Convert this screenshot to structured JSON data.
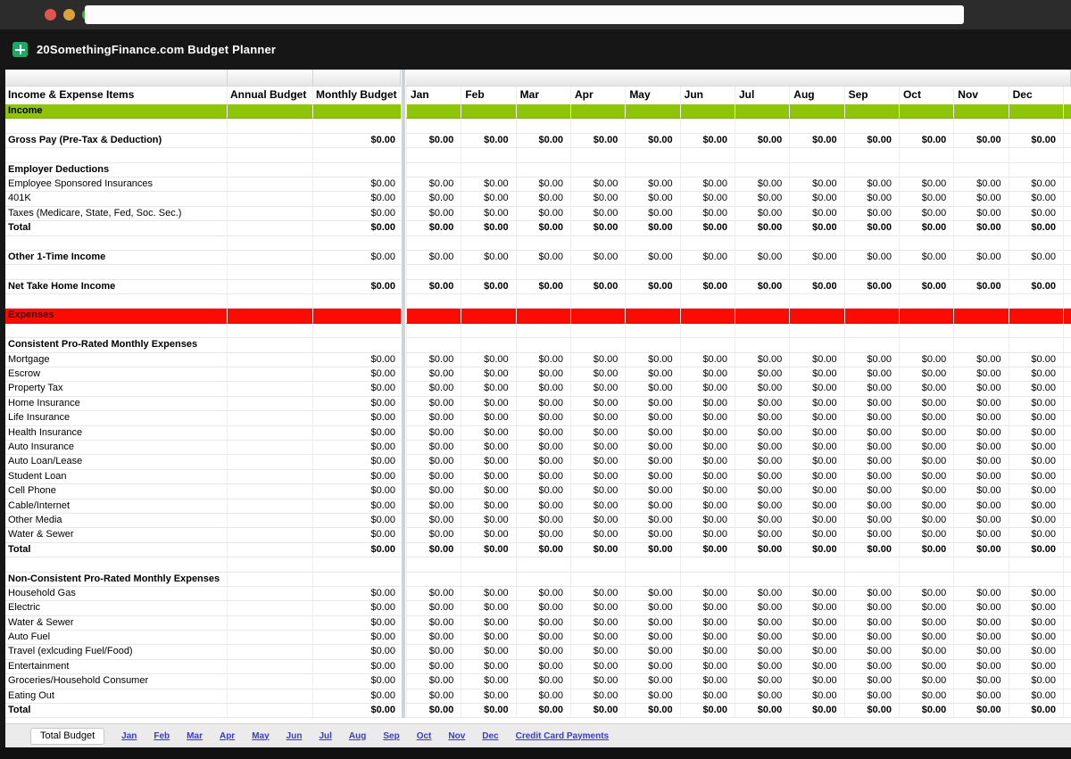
{
  "chrome": {
    "traffic_lights": [
      {
        "name": "close-button",
        "color": "#dd5750"
      },
      {
        "name": "minimize-button",
        "color": "#d9a33a"
      },
      {
        "name": "zoom-button",
        "color": "#53a74f"
      }
    ],
    "url_value": ""
  },
  "header": {
    "title": "20SomethingFinance.com Budget Planner"
  },
  "colors": {
    "income_band": "#8ec509",
    "expense_band": "#fb0b00",
    "link": "#3b3bc8",
    "sheets_icon": "#23a566"
  },
  "columns": {
    "label": "Income & Expense Items",
    "annual": "Annual Budget",
    "monthly": "Monthly Budget",
    "months": [
      "Jan",
      "Feb",
      "Mar",
      "Apr",
      "May",
      "Jun",
      "Jul",
      "Aug",
      "Sep",
      "Oct",
      "Nov",
      "Dec"
    ]
  },
  "zero_value": "$0.00",
  "rows": [
    {
      "label": "Income",
      "band": "income",
      "label_bold": true
    },
    {
      "blank": true
    },
    {
      "label": "Gross Pay (Pre-Tax & Deduction)",
      "label_bold": true,
      "has_values": true,
      "values_bold": true
    },
    {
      "blank": true
    },
    {
      "label": "Employer Deductions",
      "label_bold": true
    },
    {
      "label": "Employee Sponsored Insurances",
      "has_values": true
    },
    {
      "label": "401K",
      "has_values": true
    },
    {
      "label": "Taxes (Medicare, State, Fed, Soc. Sec.)",
      "has_values": true
    },
    {
      "label": "Total",
      "label_bold": true,
      "has_values": true,
      "values_bold": true
    },
    {
      "blank": true
    },
    {
      "label": "Other 1-Time Income",
      "label_bold": true,
      "has_values": true
    },
    {
      "blank": true
    },
    {
      "label": "Net Take Home Income",
      "label_bold": true,
      "has_values": true,
      "values_bold": true
    },
    {
      "blank": true
    },
    {
      "label": "Expenses",
      "band": "expense",
      "label_bold": true
    },
    {
      "blank": true
    },
    {
      "label": "Consistent Pro-Rated Monthly Expenses",
      "label_bold": true
    },
    {
      "label": "Mortgage",
      "has_values": true
    },
    {
      "label": "Escrow",
      "has_values": true
    },
    {
      "label": "Property Tax",
      "has_values": true
    },
    {
      "label": "Home Insurance",
      "has_values": true
    },
    {
      "label": "Life Insurance",
      "has_values": true
    },
    {
      "label": "Health Insurance",
      "has_values": true
    },
    {
      "label": "Auto Insurance",
      "has_values": true
    },
    {
      "label": "Auto Loan/Lease",
      "has_values": true
    },
    {
      "label": "Student Loan",
      "has_values": true
    },
    {
      "label": "Cell Phone",
      "has_values": true
    },
    {
      "label": "Cable/Internet",
      "has_values": true
    },
    {
      "label": "Other Media",
      "has_values": true
    },
    {
      "label": "Water & Sewer",
      "has_values": true
    },
    {
      "label": "Total",
      "label_bold": true,
      "has_values": true,
      "values_bold": true
    },
    {
      "blank": true
    },
    {
      "label": "Non-Consistent Pro-Rated Monthly Expenses",
      "label_bold": true
    },
    {
      "label": "Household Gas",
      "has_values": true
    },
    {
      "label": "Electric",
      "has_values": true
    },
    {
      "label": "Water & Sewer",
      "has_values": true
    },
    {
      "label": "Auto Fuel",
      "has_values": true
    },
    {
      "label": "Travel (exlcuding Fuel/Food)",
      "has_values": true
    },
    {
      "label": "Entertainment",
      "has_values": true
    },
    {
      "label": "Groceries/Household Consumer",
      "has_values": true
    },
    {
      "label": "Eating Out",
      "has_values": true
    },
    {
      "label": "Total",
      "label_bold": true,
      "has_values": true,
      "values_bold": true
    }
  ],
  "tabs": {
    "active": "Total Budget",
    "links": [
      "Jan",
      "Feb",
      "Mar",
      "Apr",
      "May",
      "Jun",
      "Jul",
      "Aug",
      "Sep",
      "Oct",
      "Nov",
      "Dec",
      "Credit Card Payments"
    ]
  }
}
